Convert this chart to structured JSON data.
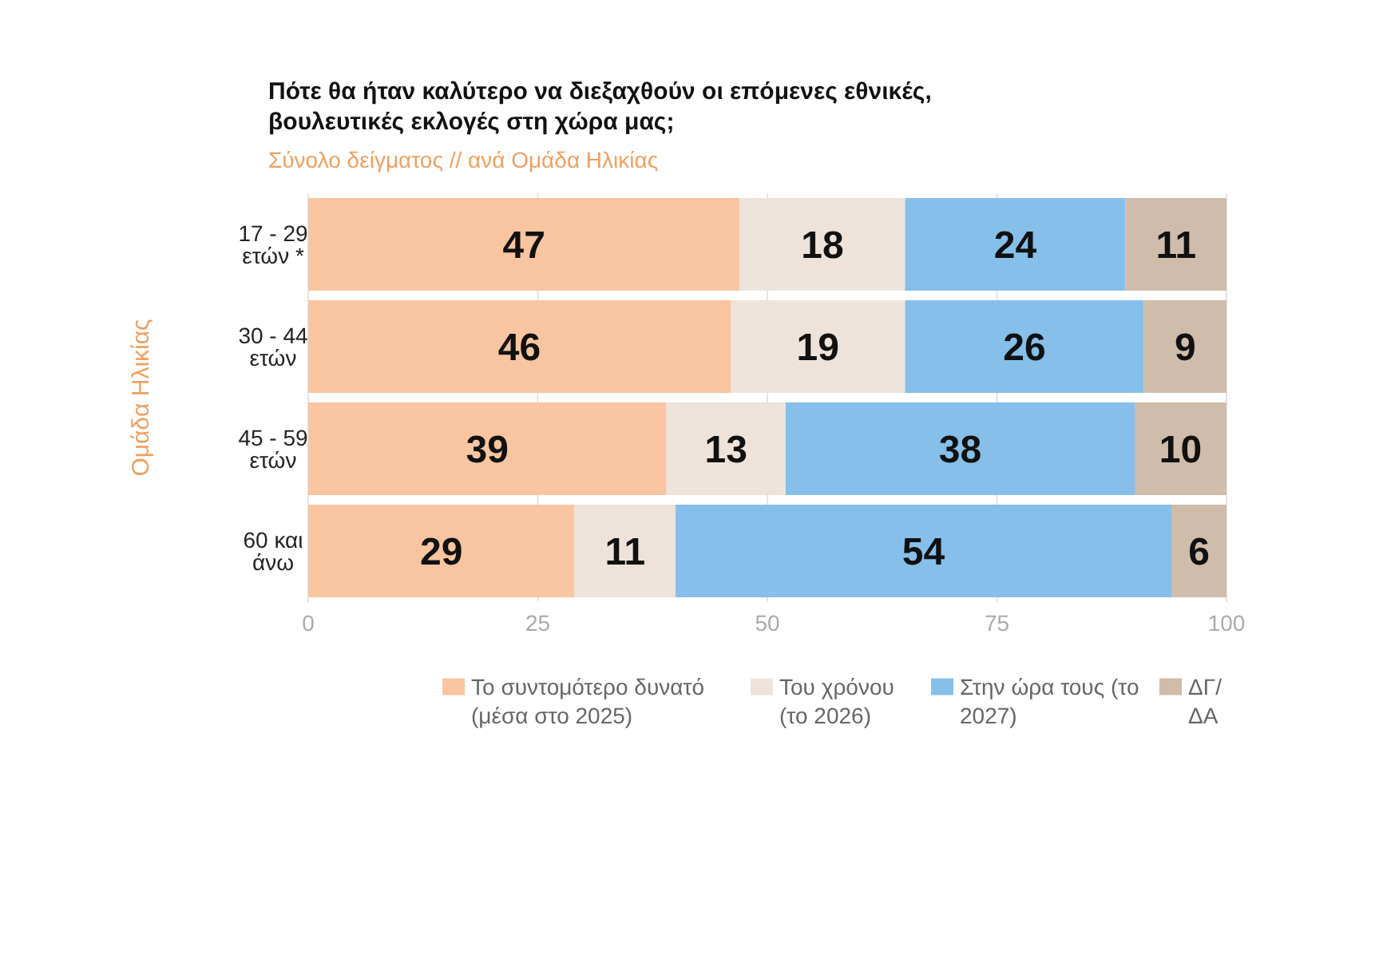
{
  "chart_data": {
    "type": "bar",
    "orientation": "horizontal",
    "stacked": true,
    "title": "Πότε θα ήταν καλύτερο να διεξαχθούν οι επόμενες εθνικές, βουλευτικές εκλογές στη χώρα μας;",
    "subtitle": "Σύνολο δείγματος // ανά Ομάδα Ηλικίας",
    "ylabel": "Ομάδα Ηλικίας",
    "categories": [
      "17 - 29 ετών *",
      "30 - 44 ετών",
      "45 - 59 ετών",
      "60 και άνω"
    ],
    "series": [
      {
        "name": "Το συντομότερο δυνατό (μέσα στο 2025)",
        "color": "#f8c5a0",
        "values": [
          47,
          46,
          39,
          29
        ]
      },
      {
        "name": "Του χρόνου (το 2026)",
        "color": "#ede3da",
        "values": [
          18,
          19,
          13,
          11
        ]
      },
      {
        "name": "Στην ώρα τους (το 2027)",
        "color": "#86bfea",
        "values": [
          24,
          26,
          38,
          54
        ]
      },
      {
        "name": "ΔΓ/ΔΑ",
        "color": "#cfbcaa",
        "values": [
          11,
          9,
          10,
          6
        ]
      }
    ],
    "xlim": [
      0,
      100
    ],
    "xticks": [
      0,
      25,
      50,
      75,
      100
    ],
    "grid": "x",
    "legend": "bottom",
    "data_labels": true
  }
}
